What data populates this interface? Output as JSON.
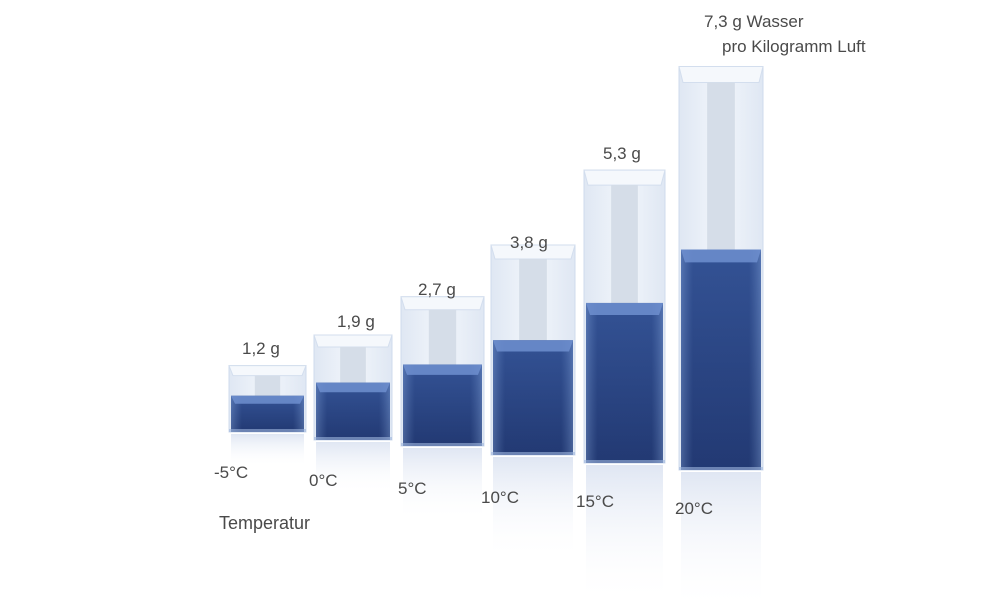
{
  "chart_data": {
    "type": "bar",
    "title": "",
    "xlabel": "Temperatur",
    "ylabel": "",
    "categories": [
      "-5°C",
      "0°C",
      "5°C",
      "10°C",
      "15°C",
      "20°C"
    ],
    "values": [
      1.2,
      1.9,
      2.7,
      3.8,
      5.3,
      7.3
    ],
    "value_labels": [
      "1,2 g",
      "1,9 g",
      "2,7 g",
      "3,8 g",
      "5,3 g",
      "7,3 g Wasser"
    ],
    "unit_note": "pro Kilogramm Luft",
    "grid": false,
    "legend": "none",
    "colors": {
      "water_top": "#2d4a8a",
      "water_bottom": "#15275c",
      "glass": "#e6edf7",
      "text": "#4a4a4a"
    }
  }
}
